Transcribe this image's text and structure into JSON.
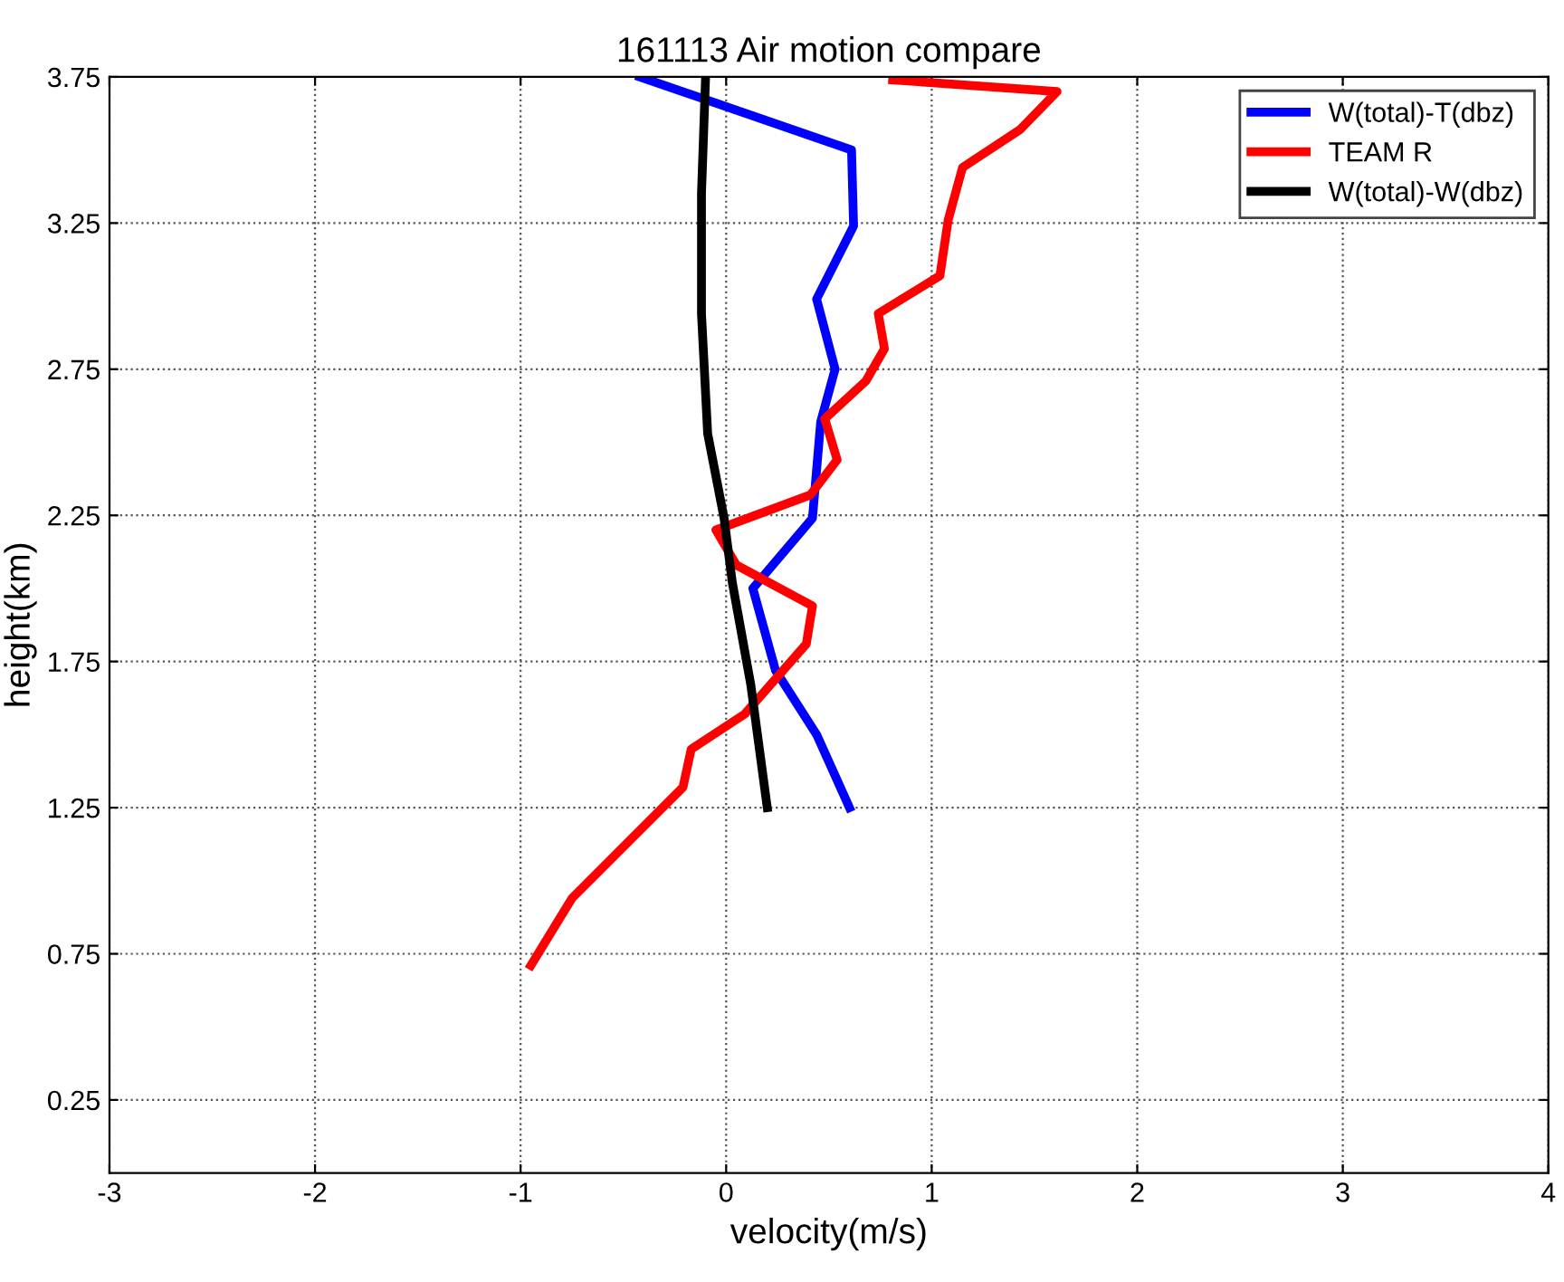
{
  "chart_data": {
    "type": "line",
    "title": "161113 Air motion compare",
    "xlabel": "velocity(m/s)",
    "ylabel": "height(km)",
    "xlim": [
      -3,
      4
    ],
    "xticks": [
      -3,
      -2,
      -1,
      0,
      1,
      2,
      3,
      4
    ],
    "ylim": [
      0,
      3.75
    ],
    "yticks": [
      0.25,
      0.75,
      1.25,
      1.75,
      2.25,
      2.75,
      3.25,
      3.75
    ],
    "grid": true,
    "legend": "top right",
    "line_style": "solid",
    "marker": "none",
    "series": [
      {
        "name": "W(total)-T(dbz)",
        "color": "#0000ff",
        "x": [
          -0.42,
          0.61,
          0.62,
          0.44,
          0.53,
          0.46,
          0.42,
          0.13,
          0.24,
          0.44,
          0.6
        ],
        "values": [
          3.75,
          3.5,
          3.24,
          2.99,
          2.75,
          2.57,
          2.24,
          2.0,
          1.72,
          1.5,
          1.25
        ]
      },
      {
        "name": "TEAM R",
        "color": "#ff0000",
        "x": [
          0.81,
          1.61,
          1.43,
          1.15,
          1.08,
          1.04,
          0.74,
          0.77,
          0.68,
          0.48,
          0.54,
          0.41,
          -0.05,
          0.05,
          0.42,
          0.39,
          0.09,
          -0.17,
          -0.21,
          -0.75,
          -0.95
        ],
        "values": [
          3.74,
          3.7,
          3.57,
          3.44,
          3.26,
          3.07,
          2.94,
          2.82,
          2.71,
          2.58,
          2.44,
          2.32,
          2.2,
          2.08,
          1.94,
          1.81,
          1.57,
          1.45,
          1.32,
          0.94,
          0.71
        ]
      },
      {
        "name": "W(total)-W(dbz)",
        "color": "#000000",
        "x": [
          -0.1,
          -0.12,
          -0.12,
          -0.09,
          -0.01,
          0.03,
          0.12,
          0.2
        ],
        "values": [
          3.75,
          3.35,
          2.94,
          2.53,
          2.24,
          2.02,
          1.67,
          1.25
        ]
      }
    ]
  }
}
